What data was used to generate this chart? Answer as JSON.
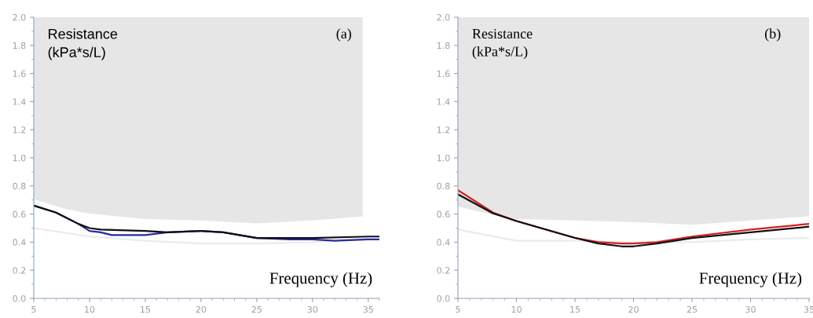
{
  "chart_data": [
    {
      "type": "line",
      "ylabel": "Resistance\n(kPa*s/L)",
      "xlabel": "Frequency (Hz)",
      "annotations": [
        "(a)"
      ],
      "xlim": [
        5,
        36
      ],
      "ylim": [
        0,
        2.0
      ],
      "xticks": [
        5,
        10,
        15,
        20,
        25,
        30,
        35
      ],
      "yticks": [
        {
          "value": 0,
          "label": "0.0"
        },
        0.2,
        0.4,
        0.6,
        0.8,
        {
          "value": 1,
          "label": "1.0"
        },
        1.2,
        1.4,
        1.6,
        1.8,
        {
          "value": 2,
          "label": "2.0"
        }
      ],
      "grid": false,
      "legend": false,
      "series": [
        {
          "type": "line",
          "color": "#e6e6e6",
          "x": [
            5,
            8,
            10,
            15,
            20,
            25,
            30,
            34.5
          ],
          "values": [
            0.71,
            0.64,
            0.61,
            0.57,
            0.56,
            0.54,
            0.56,
            0.59
          ],
          "lower": [
            0.71,
            0.64,
            0.61,
            0.57,
            0.56,
            0.54,
            0.56,
            0.59
          ],
          "upper": [
            2.0,
            2.0,
            2.0,
            2.0,
            2.0,
            2.0,
            2.0,
            2.0
          ]
        },
        {
          "type": "line",
          "color": "#ebebeb",
          "x": [
            5,
            10,
            15,
            20,
            25,
            30,
            35
          ],
          "values": [
            0.5,
            0.44,
            0.41,
            0.39,
            0.39,
            0.4,
            0.43
          ]
        },
        {
          "type": "line",
          "color": "#2a2aa0",
          "x": [
            5,
            7,
            9,
            10,
            11,
            12,
            15,
            17,
            20,
            22,
            25,
            28,
            30,
            32,
            35,
            36
          ],
          "values": [
            0.66,
            0.61,
            0.53,
            0.48,
            0.47,
            0.45,
            0.45,
            0.47,
            0.48,
            0.47,
            0.43,
            0.42,
            0.42,
            0.41,
            0.42,
            0.42
          ]
        },
        {
          "type": "line",
          "color": "#111111",
          "x": [
            5,
            7,
            9,
            10,
            11,
            15,
            17,
            20,
            22,
            25,
            27,
            30,
            35,
            36
          ],
          "values": [
            0.66,
            0.61,
            0.53,
            0.5,
            0.49,
            0.48,
            0.47,
            0.48,
            0.47,
            0.43,
            0.43,
            0.43,
            0.44,
            0.44
          ]
        }
      ]
    },
    {
      "type": "line",
      "ylabel": "Resistance\n(kPa*s/L)",
      "xlabel": "Frequency (Hz)",
      "annotations": [
        "(b)"
      ],
      "xlim": [
        5,
        35
      ],
      "ylim": [
        0,
        2.0
      ],
      "xticks": [
        5,
        10,
        15,
        20,
        25,
        30,
        35
      ],
      "yticks": [
        {
          "value": 0,
          "label": "0.0"
        },
        0.2,
        0.4,
        0.6,
        0.8,
        {
          "value": 1,
          "label": "1.0"
        },
        1.2,
        1.4,
        1.6,
        1.8,
        {
          "value": 2,
          "label": "2.0"
        }
      ],
      "grid": false,
      "legend": false,
      "series": [
        {
          "type": "line",
          "color": "#e6e6e6",
          "x": [
            5,
            8,
            10,
            15,
            20,
            25,
            30,
            35
          ],
          "values": [
            0.66,
            0.6,
            0.57,
            0.56,
            0.55,
            0.53,
            0.56,
            0.59
          ],
          "lower": [
            0.66,
            0.6,
            0.57,
            0.56,
            0.55,
            0.53,
            0.56,
            0.59
          ],
          "upper": [
            2.0,
            2.0,
            2.0,
            2.0,
            2.0,
            2.0,
            2.0,
            2.0
          ]
        },
        {
          "type": "line",
          "color": "#ebebeb",
          "x": [
            5,
            10,
            15,
            20,
            25,
            30,
            35
          ],
          "values": [
            0.49,
            0.41,
            0.41,
            0.4,
            0.4,
            0.42,
            0.43
          ]
        },
        {
          "type": "line",
          "color": "#d42020",
          "x": [
            5,
            8,
            10,
            15,
            17,
            19,
            20,
            22,
            25,
            30,
            35
          ],
          "values": [
            0.77,
            0.61,
            0.55,
            0.43,
            0.4,
            0.39,
            0.39,
            0.4,
            0.44,
            0.49,
            0.53
          ]
        },
        {
          "type": "line",
          "color": "#111111",
          "x": [
            5,
            8,
            10,
            15,
            17,
            19,
            20,
            22,
            25,
            30,
            35
          ],
          "values": [
            0.74,
            0.605,
            0.55,
            0.43,
            0.39,
            0.37,
            0.37,
            0.39,
            0.43,
            0.47,
            0.51
          ]
        }
      ]
    }
  ]
}
